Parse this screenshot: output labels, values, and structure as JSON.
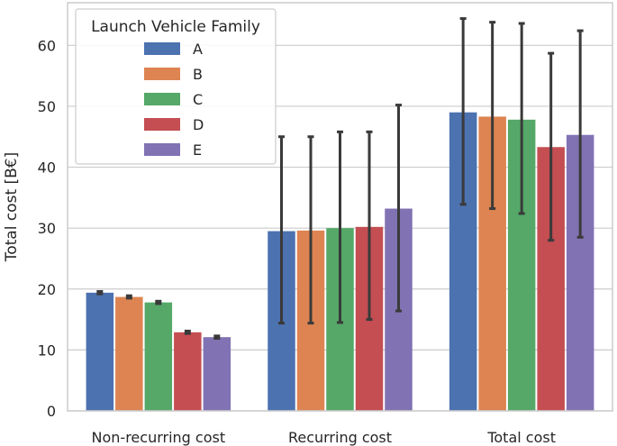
{
  "chart_data": {
    "type": "bar",
    "categories": [
      "Non-recurring cost",
      "Recurring cost",
      "Total cost"
    ],
    "ylabel": "Total cost [B€]",
    "xlabel": "",
    "ylim": [
      0,
      67
    ],
    "yticks": [
      0,
      10,
      20,
      30,
      40,
      50,
      60
    ],
    "grid": true,
    "legend": {
      "title": "Launch Vehicle Family",
      "placement": "top-left"
    },
    "series": [
      {
        "name": "A",
        "color": "#4c72b0",
        "values": [
          19.4,
          29.5,
          49.0
        ],
        "error_low": [
          19.2,
          14.4,
          33.9
        ],
        "error_high": [
          19.6,
          45.0,
          64.4
        ]
      },
      {
        "name": "B",
        "color": "#dd8452",
        "values": [
          18.7,
          29.6,
          48.3
        ],
        "error_low": [
          18.5,
          14.4,
          33.2
        ],
        "error_high": [
          18.9,
          45.0,
          63.8
        ]
      },
      {
        "name": "C",
        "color": "#55a868",
        "values": [
          17.8,
          30.0,
          47.8
        ],
        "error_low": [
          17.6,
          14.5,
          32.4
        ],
        "error_high": [
          18.0,
          45.8,
          63.6
        ]
      },
      {
        "name": "D",
        "color": "#c44e52",
        "values": [
          12.9,
          30.2,
          43.3
        ],
        "error_low": [
          12.7,
          15.0,
          28.0
        ],
        "error_high": [
          13.1,
          45.8,
          58.7
        ]
      },
      {
        "name": "E",
        "color": "#8172b3",
        "values": [
          12.1,
          33.2,
          45.3
        ],
        "error_low": [
          11.9,
          16.4,
          28.5
        ],
        "error_high": [
          12.3,
          50.2,
          62.4
        ]
      }
    ]
  }
}
